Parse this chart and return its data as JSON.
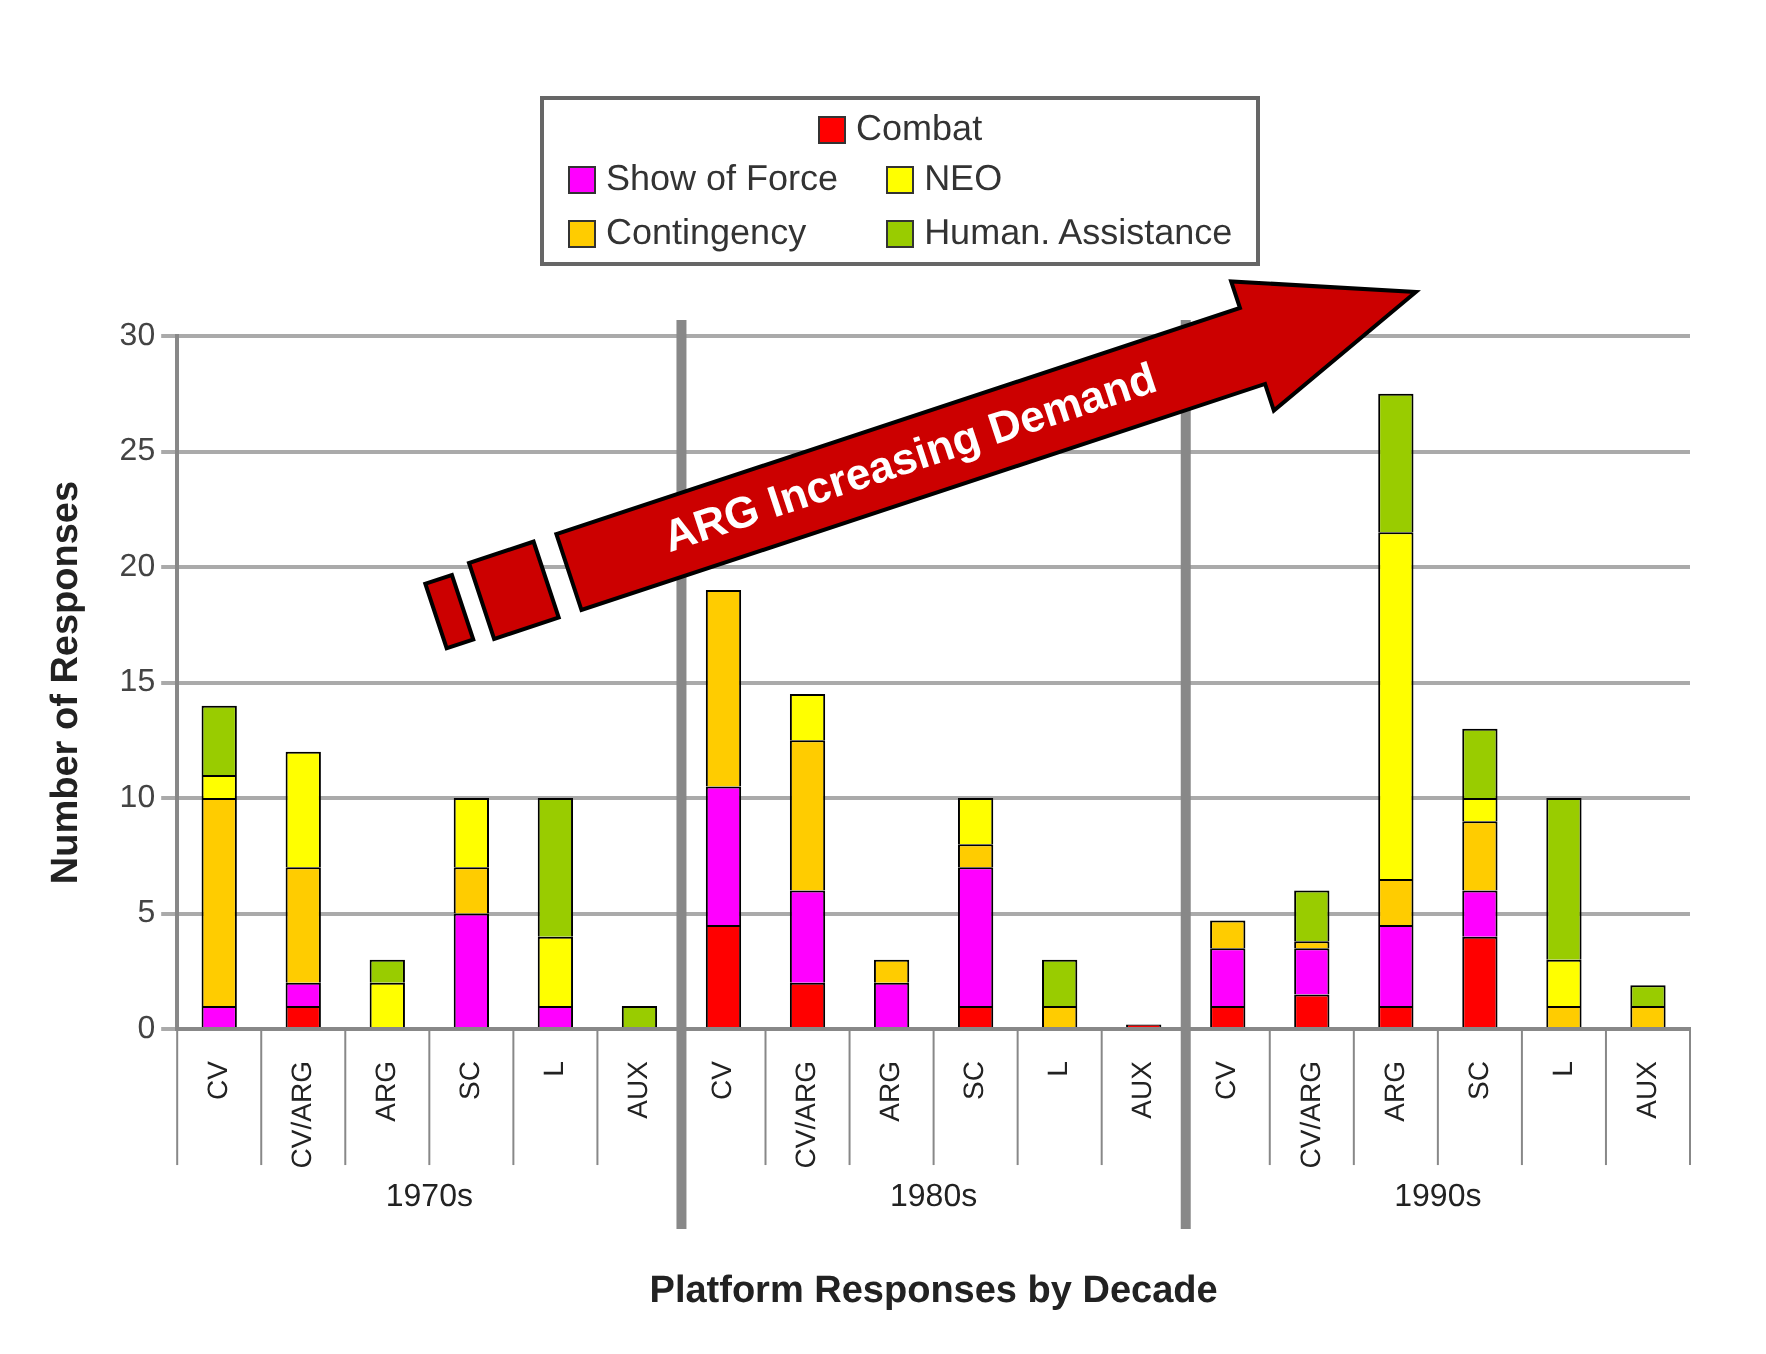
{
  "chart_data": {
    "type": "bar",
    "stacked": true,
    "xlabel": "Platform Responses by Decade",
    "ylabel": "Number of Responses",
    "categories": [
      "CV",
      "CV/ARG",
      "ARG",
      "SC",
      "L",
      "AUX",
      "CV",
      "CV/ARG",
      "ARG",
      "SC",
      "L",
      "AUX",
      "CV",
      "CV/ARG",
      "ARG",
      "SC",
      "L",
      "AUX"
    ],
    "series": [
      {
        "name": "Combat",
        "color": "#ff0000",
        "values": [
          0,
          1,
          0,
          0,
          0,
          0,
          4.5,
          2,
          0,
          1,
          0,
          0.2,
          1,
          1.5,
          1,
          4,
          0,
          0
        ]
      },
      {
        "name": "Show of Force",
        "color": "#ff00ff",
        "values": [
          1,
          1,
          0,
          5,
          1,
          0,
          6,
          4,
          2,
          6,
          0,
          0,
          2.5,
          2,
          3.5,
          2,
          0,
          0
        ]
      },
      {
        "name": "Contingency",
        "color": "#ffcc00",
        "values": [
          9,
          5,
          0,
          2,
          0,
          0,
          8.5,
          6.5,
          1,
          1,
          1,
          0,
          1.2,
          0.3,
          2,
          3,
          1,
          1
        ]
      },
      {
        "name": "NEO",
        "color": "#ffff00",
        "values": [
          1,
          5,
          2,
          3,
          3,
          0,
          null,
          2,
          0,
          2,
          0,
          0,
          0,
          0,
          15,
          1,
          2,
          0
        ]
      },
      {
        "name": "Human. Assistance",
        "color": "#99cc00",
        "values": [
          3,
          0,
          1,
          0,
          6,
          1,
          null,
          0,
          0,
          0,
          2,
          0,
          0,
          2.2,
          6,
          3,
          7,
          0.9
        ]
      }
    ],
    "ylim": [
      0,
      30
    ],
    "yticks": [
      0,
      5,
      10,
      15,
      20,
      25,
      30
    ],
    "grid": "y",
    "legend": "top",
    "annotations": [
      "1970s",
      "1980s",
      "1990s",
      "ARG Increasing Demand"
    ]
  }
}
